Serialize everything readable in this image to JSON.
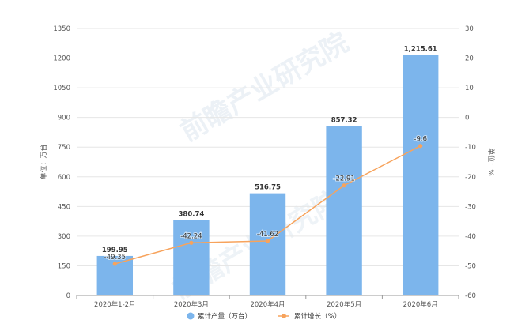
{
  "chart_data": {
    "type": "bar",
    "categories": [
      "2020年1-2月",
      "2020年3月",
      "2020年4月",
      "2020年5月",
      "2020年6月"
    ],
    "series": [
      {
        "name": "累计产量（万台）",
        "type": "bar",
        "axis": "left",
        "values": [
          199.95,
          380.74,
          516.75,
          857.32,
          1215.61
        ],
        "labels": [
          "199.95",
          "380.74",
          "516.75",
          "857.32",
          "1,215.61"
        ],
        "color": "#7cb5ec"
      },
      {
        "name": "累计增长（%）",
        "type": "line",
        "axis": "right",
        "values": [
          -49.35,
          -42.24,
          -41.62,
          -22.91,
          -9.6
        ],
        "labels": [
          "-49.35",
          "-42.24",
          "-41.62",
          "-22.91",
          "-9.6"
        ],
        "color": "#f7a35c"
      }
    ],
    "y_left": {
      "label": "单位：万台",
      "ylim": [
        0,
        1350
      ],
      "ticks": [
        0,
        150,
        300,
        450,
        600,
        750,
        900,
        1050,
        1200,
        1350
      ]
    },
    "y_right": {
      "label": "单位：%",
      "ylim": [
        -60,
        30
      ],
      "ticks": [
        -60,
        -50,
        -40,
        -30,
        -20,
        -10,
        0,
        10,
        20,
        30
      ]
    },
    "grid": true,
    "legend_position": "bottom"
  },
  "watermark": "前瞻产业研究院"
}
